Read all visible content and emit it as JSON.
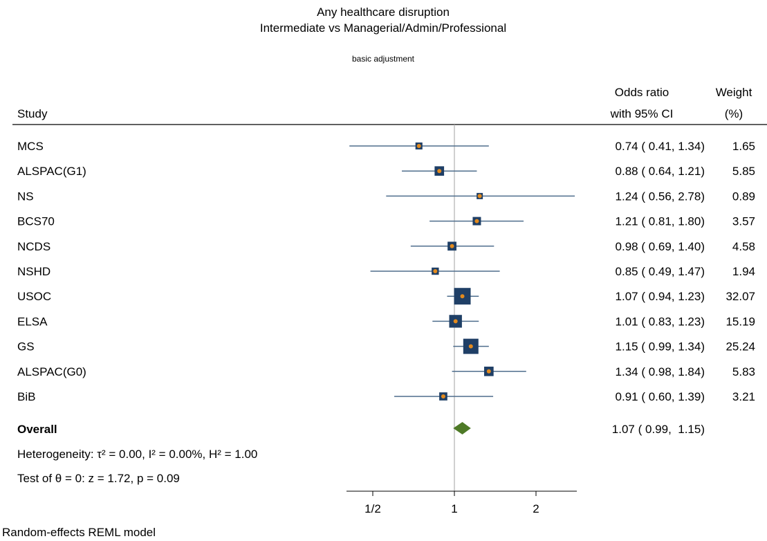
{
  "colors": {
    "ci_line": "#4e6d8c",
    "weight_box": "#1f3f66",
    "point": "#e28a1e",
    "diamond": "#4e7a27",
    "null_line": "#b0b0b0"
  },
  "chart_data": {
    "type": "forest",
    "title_line1": "Any healthcare disruption",
    "title_line2": "Intermediate vs Managerial/Admin/Professional",
    "subtitle": "basic adjustment",
    "header_study": "Study",
    "header_or_line1": "Odds ratio",
    "header_or_line2": "with 95% CI",
    "header_weight_line1": "Weight",
    "header_weight_line2": "(%)",
    "x_scale": "log",
    "xlim": [
      0.4,
      2.5
    ],
    "x_ticks": [
      0.5,
      1,
      2
    ],
    "x_tick_labels": [
      "1/2",
      "1",
      "2"
    ],
    "studies": [
      {
        "name": "MCS",
        "or": 0.74,
        "lo": 0.41,
        "hi": 1.34,
        "weight": 1.65,
        "ci_text": "0.74 ( 0.41,  1.34)",
        "weight_text": "1.65"
      },
      {
        "name": "ALSPAC(G1)",
        "or": 0.88,
        "lo": 0.64,
        "hi": 1.21,
        "weight": 5.85,
        "ci_text": "0.88 ( 0.64,  1.21)",
        "weight_text": "5.85"
      },
      {
        "name": "NS",
        "or": 1.24,
        "lo": 0.56,
        "hi": 2.78,
        "weight": 0.89,
        "ci_text": "1.24 ( 0.56,  2.78)",
        "weight_text": "0.89"
      },
      {
        "name": "BCS70",
        "or": 1.21,
        "lo": 0.81,
        "hi": 1.8,
        "weight": 3.57,
        "ci_text": "1.21 ( 0.81,  1.80)",
        "weight_text": "3.57"
      },
      {
        "name": "NCDS",
        "or": 0.98,
        "lo": 0.69,
        "hi": 1.4,
        "weight": 4.58,
        "ci_text": "0.98 ( 0.69,  1.40)",
        "weight_text": "4.58"
      },
      {
        "name": "NSHD",
        "or": 0.85,
        "lo": 0.49,
        "hi": 1.47,
        "weight": 1.94,
        "ci_text": "0.85 ( 0.49,  1.47)",
        "weight_text": "1.94"
      },
      {
        "name": "USOC",
        "or": 1.07,
        "lo": 0.94,
        "hi": 1.23,
        "weight": 32.07,
        "ci_text": "1.07 ( 0.94,  1.23)",
        "weight_text": "32.07"
      },
      {
        "name": "ELSA",
        "or": 1.01,
        "lo": 0.83,
        "hi": 1.23,
        "weight": 15.19,
        "ci_text": "1.01 ( 0.83,  1.23)",
        "weight_text": "15.19"
      },
      {
        "name": "GS",
        "or": 1.15,
        "lo": 0.99,
        "hi": 1.34,
        "weight": 25.24,
        "ci_text": "1.15 ( 0.99,  1.34)",
        "weight_text": "25.24"
      },
      {
        "name": "ALSPAC(G0)",
        "or": 1.34,
        "lo": 0.98,
        "hi": 1.84,
        "weight": 5.83,
        "ci_text": "1.34 ( 0.98,  1.84)",
        "weight_text": "5.83"
      },
      {
        "name": "BiB",
        "or": 0.91,
        "lo": 0.6,
        "hi": 1.39,
        "weight": 3.21,
        "ci_text": "0.91 ( 0.60,  1.39)",
        "weight_text": "3.21"
      }
    ],
    "overall": {
      "name": "Overall",
      "or": 1.07,
      "lo": 0.99,
      "hi": 1.15,
      "ci_text": "1.07 ( 0.99,  1.15)"
    },
    "heterogeneity_text": "Heterogeneity: τ² = 0.00, I² = 0.00%, H² = 1.00",
    "test_text": "Test of θ = 0: z = 1.72, p = 0.09",
    "footnote": "Random-effects REML model"
  }
}
